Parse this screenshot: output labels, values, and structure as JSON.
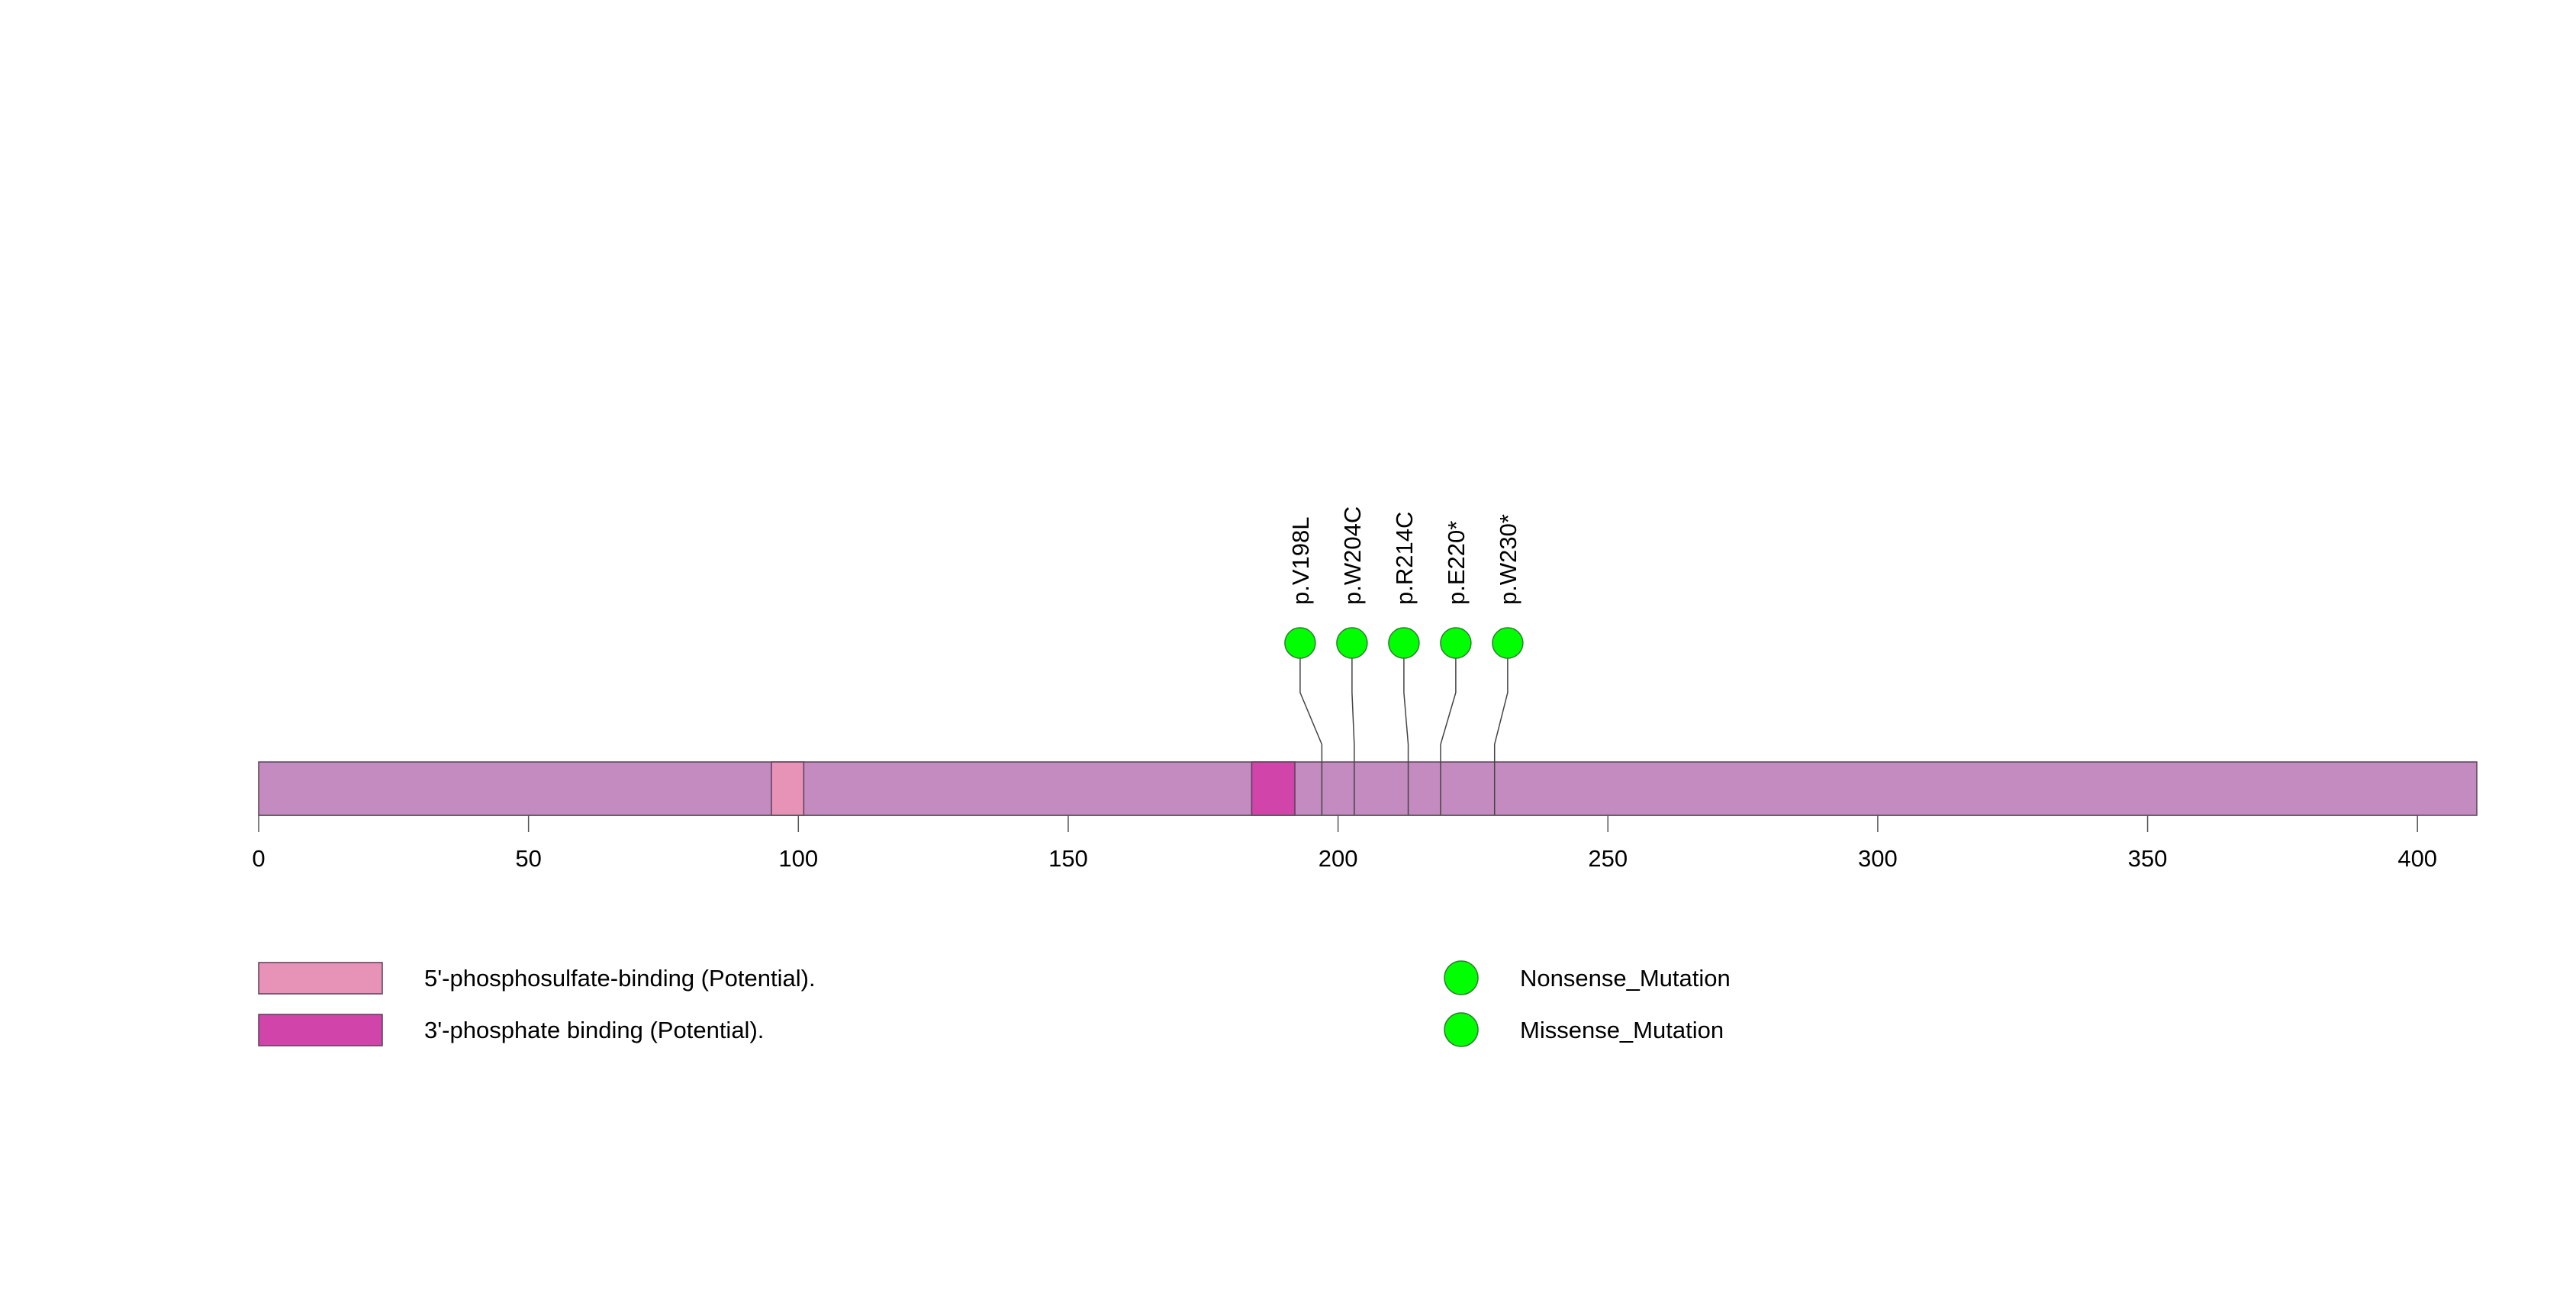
{
  "chart_data": {
    "type": "lollipop",
    "title": "",
    "protein_length": 411,
    "x_axis": {
      "range": [
        0,
        411
      ],
      "ticks": [
        0,
        50,
        100,
        150,
        200,
        250,
        300,
        350,
        400
      ],
      "tick_labels": [
        "0",
        "50",
        "100",
        "150",
        "200",
        "250",
        "300",
        "350",
        "400"
      ]
    },
    "backbone_color": "#c38bbf",
    "domains": [
      {
        "name": "5'-phosphosulfate-binding (Potential).",
        "start": 95,
        "end": 101,
        "color": "#e793b7"
      },
      {
        "name": "3'-phosphate binding (Potential).",
        "start": 184,
        "end": 192,
        "color": "#d144a9"
      }
    ],
    "mutations": [
      {
        "label": "p.V198L",
        "position": 197,
        "type": "Missense_Mutation",
        "color": "#00ff00"
      },
      {
        "label": "p.W204C",
        "position": 203,
        "type": "Missense_Mutation",
        "color": "#00ff00"
      },
      {
        "label": "p.R214C",
        "position": 213,
        "type": "Missense_Mutation",
        "color": "#00ff00"
      },
      {
        "label": "p.E220*",
        "position": 219,
        "type": "Nonsense_Mutation",
        "color": "#00ff00"
      },
      {
        "label": "p.W230*",
        "position": 229,
        "type": "Nonsense_Mutation",
        "color": "#00ff00"
      }
    ],
    "legend": {
      "domains": [
        {
          "label": "5'-phosphosulfate-binding (Potential).",
          "color": "#e793b7"
        },
        {
          "label": "3'-phosphate binding (Potential).",
          "color": "#d144a9"
        }
      ],
      "mutation_types": [
        {
          "label": "Nonsense_Mutation",
          "color": "#00ff00"
        },
        {
          "label": "Missense_Mutation",
          "color": "#00ff00"
        }
      ]
    }
  }
}
